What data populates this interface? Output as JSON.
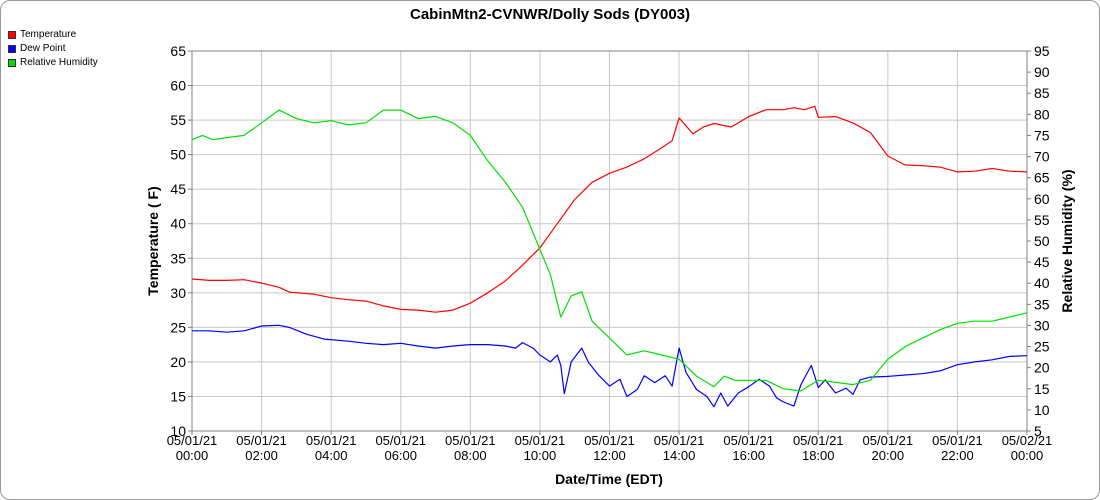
{
  "colors": {
    "temperature": "#ff0000",
    "dew_point": "#0000ff",
    "relative_humidity": "#00e000",
    "grid": "#c8c8c8"
  },
  "chart_data": {
    "type": "line",
    "title": "CabinMtn2-CVNWR/Dolly Sods (DY003)",
    "xlabel": "Date/Time (EDT)",
    "ylabel": "Temperature ( F)",
    "y2label": "Relative Humidity (%)",
    "ylim": [
      10,
      65
    ],
    "y2lim": [
      5,
      95
    ],
    "grid": true,
    "legend_position": "top-left",
    "x_ticks": [
      {
        "date": "05/01/21",
        "time": "00:00"
      },
      {
        "date": "05/01/21",
        "time": "02:00"
      },
      {
        "date": "05/01/21",
        "time": "04:00"
      },
      {
        "date": "05/01/21",
        "time": "06:00"
      },
      {
        "date": "05/01/21",
        "time": "08:00"
      },
      {
        "date": "05/01/21",
        "time": "10:00"
      },
      {
        "date": "05/01/21",
        "time": "12:00"
      },
      {
        "date": "05/01/21",
        "time": "14:00"
      },
      {
        "date": "05/01/21",
        "time": "16:00"
      },
      {
        "date": "05/01/21",
        "time": "18:00"
      },
      {
        "date": "05/01/21",
        "time": "20:00"
      },
      {
        "date": "05/01/21",
        "time": "22:00"
      },
      {
        "date": "05/02/21",
        "time": "00:00"
      }
    ],
    "y_ticks": [
      "10",
      "15",
      "20",
      "25",
      "30",
      "35",
      "40",
      "45",
      "50",
      "55",
      "60",
      "65"
    ],
    "y2_ticks": [
      "5",
      "10",
      "15",
      "20",
      "25",
      "30",
      "35",
      "40",
      "45",
      "50",
      "55",
      "60",
      "65",
      "70",
      "75",
      "80",
      "85",
      "90",
      "95"
    ],
    "series": [
      {
        "name": "Temperature",
        "axis": "left",
        "points": [
          [
            0,
            32
          ],
          [
            0.5,
            31.8
          ],
          [
            1,
            31.8
          ],
          [
            1.5,
            31.9
          ],
          [
            2,
            31.4
          ],
          [
            2.5,
            30.8
          ],
          [
            2.8,
            30.1
          ],
          [
            3.5,
            29.8
          ],
          [
            4,
            29.3
          ],
          [
            4.5,
            29
          ],
          [
            5,
            28.8
          ],
          [
            5.5,
            28.1
          ],
          [
            6,
            27.6
          ],
          [
            6.5,
            27.5
          ],
          [
            7,
            27.2
          ],
          [
            7.5,
            27.5
          ],
          [
            8,
            28.5
          ],
          [
            8.5,
            30
          ],
          [
            9,
            31.7
          ],
          [
            9.5,
            34
          ],
          [
            10,
            36.5
          ],
          [
            10.5,
            40
          ],
          [
            11,
            43.5
          ],
          [
            11.5,
            46
          ],
          [
            12,
            47.3
          ],
          [
            12.5,
            48.2
          ],
          [
            13,
            49.4
          ],
          [
            13.5,
            51
          ],
          [
            13.8,
            52
          ],
          [
            14,
            55.3
          ],
          [
            14.4,
            53
          ],
          [
            14.7,
            54
          ],
          [
            15,
            54.5
          ],
          [
            15.5,
            54
          ],
          [
            16,
            55.5
          ],
          [
            16.5,
            56.5
          ],
          [
            17,
            56.5
          ],
          [
            17.3,
            56.8
          ],
          [
            17.6,
            56.5
          ],
          [
            17.9,
            57
          ],
          [
            18,
            55.4
          ],
          [
            18.5,
            55.5
          ],
          [
            19,
            54.6
          ],
          [
            19.5,
            53.2
          ],
          [
            20,
            49.8
          ],
          [
            20.5,
            48.5
          ],
          [
            21,
            48.4
          ],
          [
            21.5,
            48.2
          ],
          [
            22,
            47.5
          ],
          [
            22.5,
            47.6
          ],
          [
            23,
            48
          ],
          [
            23.5,
            47.6
          ],
          [
            24,
            47.5
          ]
        ]
      },
      {
        "name": "Dew Point",
        "axis": "left",
        "points": [
          [
            0,
            24.5
          ],
          [
            0.5,
            24.5
          ],
          [
            1,
            24.3
          ],
          [
            1.5,
            24.5
          ],
          [
            2,
            25.2
          ],
          [
            2.5,
            25.3
          ],
          [
            2.8,
            25
          ],
          [
            3.3,
            24
          ],
          [
            3.8,
            23.3
          ],
          [
            4.5,
            23
          ],
          [
            5,
            22.7
          ],
          [
            5.5,
            22.5
          ],
          [
            6,
            22.7
          ],
          [
            6.5,
            22.3
          ],
          [
            7,
            22
          ],
          [
            7.5,
            22.3
          ],
          [
            8,
            22.5
          ],
          [
            8.5,
            22.5
          ],
          [
            9,
            22.3
          ],
          [
            9.3,
            22
          ],
          [
            9.5,
            22.8
          ],
          [
            9.8,
            22
          ],
          [
            10,
            21
          ],
          [
            10.3,
            20
          ],
          [
            10.5,
            21
          ],
          [
            10.6,
            19.5
          ],
          [
            10.7,
            15.4
          ],
          [
            10.9,
            20
          ],
          [
            11.2,
            22
          ],
          [
            11.4,
            19.9
          ],
          [
            11.7,
            18
          ],
          [
            12,
            16.5
          ],
          [
            12.3,
            17.5
          ],
          [
            12.5,
            15
          ],
          [
            12.8,
            16
          ],
          [
            13,
            18
          ],
          [
            13.3,
            17
          ],
          [
            13.6,
            18
          ],
          [
            13.8,
            16.5
          ],
          [
            14,
            22
          ],
          [
            14.2,
            18.5
          ],
          [
            14.5,
            16
          ],
          [
            14.8,
            15
          ],
          [
            15,
            13.5
          ],
          [
            15.2,
            15.5
          ],
          [
            15.4,
            13.6
          ],
          [
            15.7,
            15.5
          ],
          [
            16,
            16.4
          ],
          [
            16.3,
            17.5
          ],
          [
            16.6,
            16.5
          ],
          [
            16.8,
            14.8
          ],
          [
            17,
            14.2
          ],
          [
            17.3,
            13.6
          ],
          [
            17.5,
            16.7
          ],
          [
            17.8,
            19.5
          ],
          [
            18,
            16.3
          ],
          [
            18.2,
            17.4
          ],
          [
            18.5,
            15.5
          ],
          [
            18.8,
            16.2
          ],
          [
            19,
            15.3
          ],
          [
            19.2,
            17.4
          ],
          [
            19.5,
            17.8
          ],
          [
            20,
            17.9
          ],
          [
            20.5,
            18.1
          ],
          [
            21,
            18.3
          ],
          [
            21.5,
            18.7
          ],
          [
            22,
            19.6
          ],
          [
            22.5,
            20
          ],
          [
            23,
            20.3
          ],
          [
            23.5,
            20.8
          ],
          [
            24,
            20.9
          ]
        ]
      },
      {
        "name": "Relative Humidity",
        "axis": "right",
        "points": [
          [
            0,
            74
          ],
          [
            0.3,
            75
          ],
          [
            0.6,
            74
          ],
          [
            1,
            74.5
          ],
          [
            1.5,
            75
          ],
          [
            2,
            78
          ],
          [
            2.5,
            81
          ],
          [
            3,
            79
          ],
          [
            3.5,
            78
          ],
          [
            4,
            78.5
          ],
          [
            4.5,
            77.5
          ],
          [
            5,
            78
          ],
          [
            5.5,
            81
          ],
          [
            6,
            81
          ],
          [
            6.5,
            79
          ],
          [
            7,
            79.5
          ],
          [
            7.5,
            78
          ],
          [
            8,
            75
          ],
          [
            8.5,
            69
          ],
          [
            9,
            64
          ],
          [
            9.5,
            58
          ],
          [
            10,
            48
          ],
          [
            10.3,
            42
          ],
          [
            10.6,
            32
          ],
          [
            10.9,
            37
          ],
          [
            11.2,
            38
          ],
          [
            11.5,
            31
          ],
          [
            12,
            27
          ],
          [
            12.5,
            23
          ],
          [
            13,
            24
          ],
          [
            13.5,
            23
          ],
          [
            14,
            22
          ],
          [
            14.5,
            18
          ],
          [
            15,
            15.5
          ],
          [
            15.3,
            18
          ],
          [
            15.6,
            17
          ],
          [
            16,
            17
          ],
          [
            16.5,
            17
          ],
          [
            17,
            15
          ],
          [
            17.5,
            14.5
          ],
          [
            18,
            17
          ],
          [
            18.5,
            16.5
          ],
          [
            19,
            16
          ],
          [
            19.5,
            17
          ],
          [
            20,
            22
          ],
          [
            20.5,
            25
          ],
          [
            21,
            27
          ],
          [
            21.5,
            29
          ],
          [
            22,
            30.5
          ],
          [
            22.5,
            31
          ],
          [
            23,
            31
          ],
          [
            23.5,
            32
          ],
          [
            24,
            33
          ]
        ]
      }
    ]
  }
}
